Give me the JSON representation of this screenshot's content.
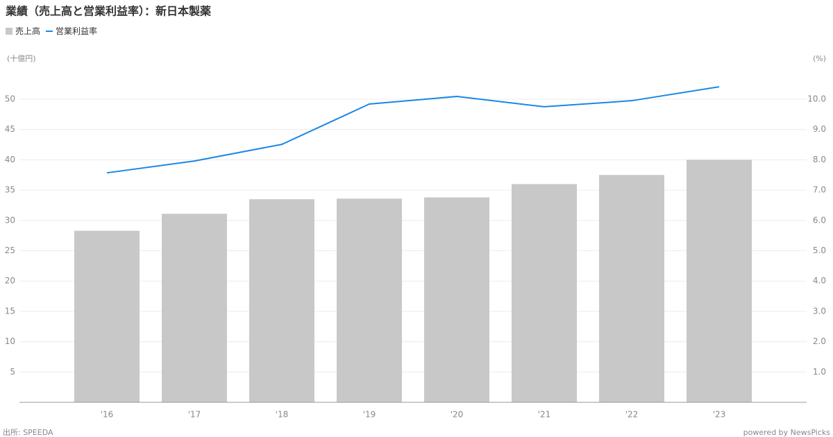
{
  "chart_data": {
    "type": "bar_line",
    "title": "業績（売上高と営業利益率）：新日本製薬",
    "y_unit": "(十億円)",
    "y2_unit": "(%)",
    "categories": [
      "'16",
      "'17",
      "'18",
      "'19",
      "'20",
      "'21",
      "'22",
      "'23"
    ],
    "series": [
      {
        "name": "売上高",
        "color": "#c8c8c8",
        "values": [
          28.3,
          31.1,
          33.5,
          33.6,
          33.8,
          36.0,
          37.5,
          40.0
        ]
      },
      {
        "name": "営業利益率",
        "color": "#1a86e6",
        "axis": "y2",
        "values": [
          7.57,
          7.96,
          8.51,
          9.84,
          10.09,
          9.75,
          9.95,
          10.41
        ]
      }
    ],
    "ylim": [
      0,
      50
    ],
    "yticks": [
      5,
      10,
      15,
      20,
      25,
      30,
      35,
      40,
      45,
      50
    ],
    "y2lim": [
      0,
      10
    ],
    "y2ticks": [
      {
        "value": 1,
        "label": "1.0"
      },
      {
        "value": 2,
        "label": "2.0"
      },
      {
        "value": 3,
        "label": "3.0"
      },
      {
        "value": 4,
        "label": "4.0"
      },
      {
        "value": 5,
        "label": "5.0"
      },
      {
        "value": 6,
        "label": "6.0"
      },
      {
        "value": 7,
        "label": "7.0"
      },
      {
        "value": 8,
        "label": "8.0"
      },
      {
        "value": 9,
        "label": "9.0"
      },
      {
        "value": 10,
        "label": "10.0"
      }
    ],
    "grid": true,
    "source": "出所: SPEEDA",
    "credit": "powered by NewsPicks"
  }
}
